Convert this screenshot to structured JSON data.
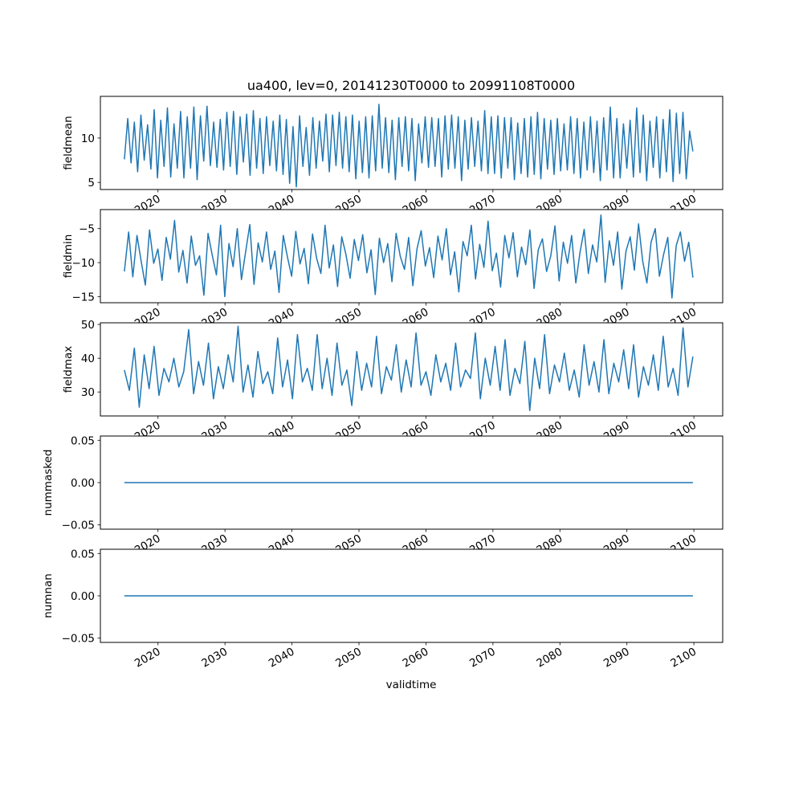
{
  "chart_data": {
    "type": "line",
    "title": "ua400, lev=0, 20141230T0000 to 20991108T0000",
    "xlabel": "validtime",
    "x_range": [
      2014.99,
      2099.85
    ],
    "xlim": [
      2011.4,
      2104.3
    ],
    "x_ticks": [
      2020,
      2030,
      2040,
      2050,
      2060,
      2070,
      2080,
      2090,
      2100
    ],
    "x_tick_labels": [
      "2020",
      "2030",
      "2040",
      "2050",
      "2060",
      "2070",
      "2080",
      "2090",
      "2100"
    ],
    "line_color": "#1f77b4",
    "panels": [
      {
        "ylabel": "fieldmean",
        "ylim": [
          4.2,
          14.7
        ],
        "y_ticks": [
          5,
          10
        ],
        "y_tick_labels": [
          "5",
          "10"
        ],
        "values": [
          7.6,
          12.2,
          7.2,
          11.8,
          6.2,
          12.6,
          7.5,
          11.5,
          6.5,
          13.2,
          5.5,
          12.0,
          6.8,
          13.4,
          5.6,
          11.6,
          6.6,
          13.0,
          5.5,
          12.4,
          6.6,
          13.5,
          5.3,
          12.5,
          7.4,
          13.6,
          6.9,
          11.8,
          6.7,
          12.1,
          6.4,
          12.9,
          6.8,
          13.0,
          5.9,
          12.4,
          7.3,
          12.7,
          5.8,
          13.1,
          6.6,
          12.2,
          6.0,
          12.4,
          6.9,
          11.9,
          6.3,
          12.6,
          5.9,
          12.1,
          4.9,
          11.3,
          4.5,
          12.5,
          6.8,
          11.2,
          5.8,
          12.3,
          6.6,
          11.9,
          7.4,
          12.7,
          6.2,
          12.6,
          6.9,
          12.9,
          6.6,
          12.4,
          6.2,
          12.6,
          5.4,
          11.9,
          6.1,
          12.4,
          5.5,
          12.5,
          6.3,
          13.8,
          6.6,
          12.3,
          6.1,
          12.0,
          5.3,
          12.3,
          6.8,
          12.4,
          6.3,
          12.2,
          5.2,
          11.6,
          7.2,
          12.4,
          6.7,
          12.3,
          6.8,
          12.2,
          5.6,
          12.5,
          6.5,
          12.6,
          6.6,
          12.4,
          5.2,
          12.0,
          6.5,
          12.3,
          6.8,
          11.9,
          6.3,
          13.1,
          6.0,
          12.4,
          6.0,
          12.5,
          5.5,
          12.3,
          6.6,
          12.3,
          5.3,
          11.7,
          6.0,
          12.2,
          5.6,
          12.4,
          5.9,
          12.9,
          5.4,
          12.2,
          6.5,
          12.0,
          5.9,
          12.2,
          6.3,
          11.6,
          6.4,
          12.4,
          6.0,
          12.2,
          5.5,
          11.8,
          6.4,
          12.4,
          6.1,
          11.9,
          5.2,
          12.3,
          6.4,
          13.5,
          5.5,
          12.2,
          5.5,
          11.6,
          6.6,
          12.0,
          5.6,
          13.4,
          6.1,
          12.6,
          5.2,
          11.9,
          6.7,
          12.4,
          5.5,
          12.1,
          6.2,
          13.2,
          5.1,
          12.8,
          6.0,
          12.9,
          5.4,
          10.8,
          8.5
        ]
      },
      {
        "ylabel": "fieldmin",
        "ylim": [
          -15.9,
          -2.2
        ],
        "y_ticks": [
          -15,
          -10,
          -5
        ],
        "y_tick_labels": [
          "−15",
          "−10",
          "−5"
        ],
        "values": [
          -11.3,
          -5.5,
          -12.1,
          -6.0,
          -9.8,
          -13.3,
          -5.2,
          -10.1,
          -8.0,
          -12.6,
          -6.3,
          -9.5,
          -3.8,
          -11.4,
          -8.2,
          -13.0,
          -6.1,
          -10.4,
          -9.0,
          -14.8,
          -5.7,
          -8.9,
          -11.8,
          -4.5,
          -15.0,
          -7.2,
          -10.6,
          -5.0,
          -12.5,
          -8.4,
          -4.4,
          -13.2,
          -7.1,
          -9.9,
          -5.5,
          -11.0,
          -8.3,
          -14.4,
          -6.0,
          -9.2,
          -12.0,
          -5.4,
          -10.2,
          -7.9,
          -13.1,
          -5.8,
          -9.4,
          -11.6,
          -4.5,
          -10.8,
          -7.4,
          -13.5,
          -6.2,
          -8.8,
          -12.3,
          -6.6,
          -9.7,
          -5.9,
          -11.5,
          -8.1,
          -14.7,
          -6.4,
          -10.0,
          -7.2,
          -12.8,
          -5.7,
          -9.1,
          -11.0,
          -6.3,
          -13.4,
          -8.0,
          -5.3,
          -10.5,
          -7.8,
          -12.2,
          -6.1,
          -9.6,
          -5.0,
          -11.8,
          -8.4,
          -14.3,
          -6.9,
          -9.0,
          -4.5,
          -12.4,
          -7.3,
          -10.7,
          -3.9,
          -11.2,
          -8.6,
          -13.6,
          -6.0,
          -9.3,
          -5.6,
          -12.1,
          -7.7,
          -10.3,
          -5.2,
          -13.8,
          -8.1,
          -6.5,
          -11.3,
          -9.0,
          -4.6,
          -12.7,
          -7.0,
          -10.1,
          -6.0,
          -13.0,
          -8.5,
          -5.1,
          -11.6,
          -7.4,
          -9.9,
          -3.0,
          -12.9,
          -6.8,
          -10.4,
          -5.5,
          -13.9,
          -8.3,
          -6.2,
          -11.1,
          -4.3,
          -9.8,
          -13.0,
          -7.0,
          -5.0,
          -12.0,
          -8.8,
          -6.3,
          -15.2,
          -7.5,
          -5.5,
          -9.8,
          -7.0,
          -12.2
        ]
      },
      {
        "ylabel": "fieldmax",
        "ylim": [
          22.9,
          50.5
        ],
        "y_ticks": [
          30,
          40,
          50
        ],
        "y_tick_labels": [
          "30",
          "40",
          "50"
        ],
        "values": [
          36.5,
          30.5,
          43.0,
          25.5,
          41.0,
          31.0,
          43.5,
          29.0,
          37.0,
          33.0,
          40.0,
          31.5,
          36.0,
          48.5,
          29.5,
          39.0,
          32.0,
          44.5,
          28.0,
          37.5,
          31.0,
          41.0,
          33.0,
          49.5,
          30.0,
          38.0,
          28.5,
          42.0,
          32.5,
          36.0,
          29.5,
          46.0,
          31.5,
          39.5,
          28.0,
          47.0,
          33.0,
          37.0,
          30.5,
          47.0,
          31.0,
          40.0,
          29.0,
          44.5,
          32.0,
          36.5,
          26.0,
          42.0,
          30.5,
          38.5,
          31.5,
          46.5,
          29.5,
          37.5,
          33.5,
          44.0,
          30.0,
          39.5,
          31.5,
          47.5,
          32.0,
          36.0,
          29.0,
          41.0,
          33.0,
          38.5,
          30.5,
          44.5,
          31.5,
          36.5,
          34.0,
          47.5,
          28.0,
          40.0,
          32.0,
          43.5,
          30.5,
          45.5,
          29.0,
          37.0,
          32.5,
          45.0,
          24.5,
          40.0,
          31.0,
          47.0,
          29.5,
          38.0,
          33.0,
          41.5,
          30.5,
          36.5,
          28.5,
          44.0,
          32.0,
          39.0,
          30.0,
          45.5,
          29.5,
          38.5,
          33.0,
          42.5,
          31.0,
          44.0,
          28.5,
          37.5,
          32.0,
          41.0,
          30.5,
          46.5,
          31.5,
          37.0,
          29.0,
          49.0,
          31.5,
          40.5
        ]
      },
      {
        "ylabel": "nummasked",
        "ylim": [
          -0.055,
          0.055
        ],
        "y_ticks": [
          -0.05,
          0.0,
          0.05
        ],
        "y_tick_labels": [
          "−0.05",
          "0.00",
          "0.05"
        ],
        "values": [
          0,
          0
        ]
      },
      {
        "ylabel": "numnan",
        "ylim": [
          -0.055,
          0.055
        ],
        "y_ticks": [
          -0.05,
          0.0,
          0.05
        ],
        "y_tick_labels": [
          "−0.05",
          "0.00",
          "0.05"
        ],
        "values": [
          0,
          0
        ]
      }
    ]
  }
}
